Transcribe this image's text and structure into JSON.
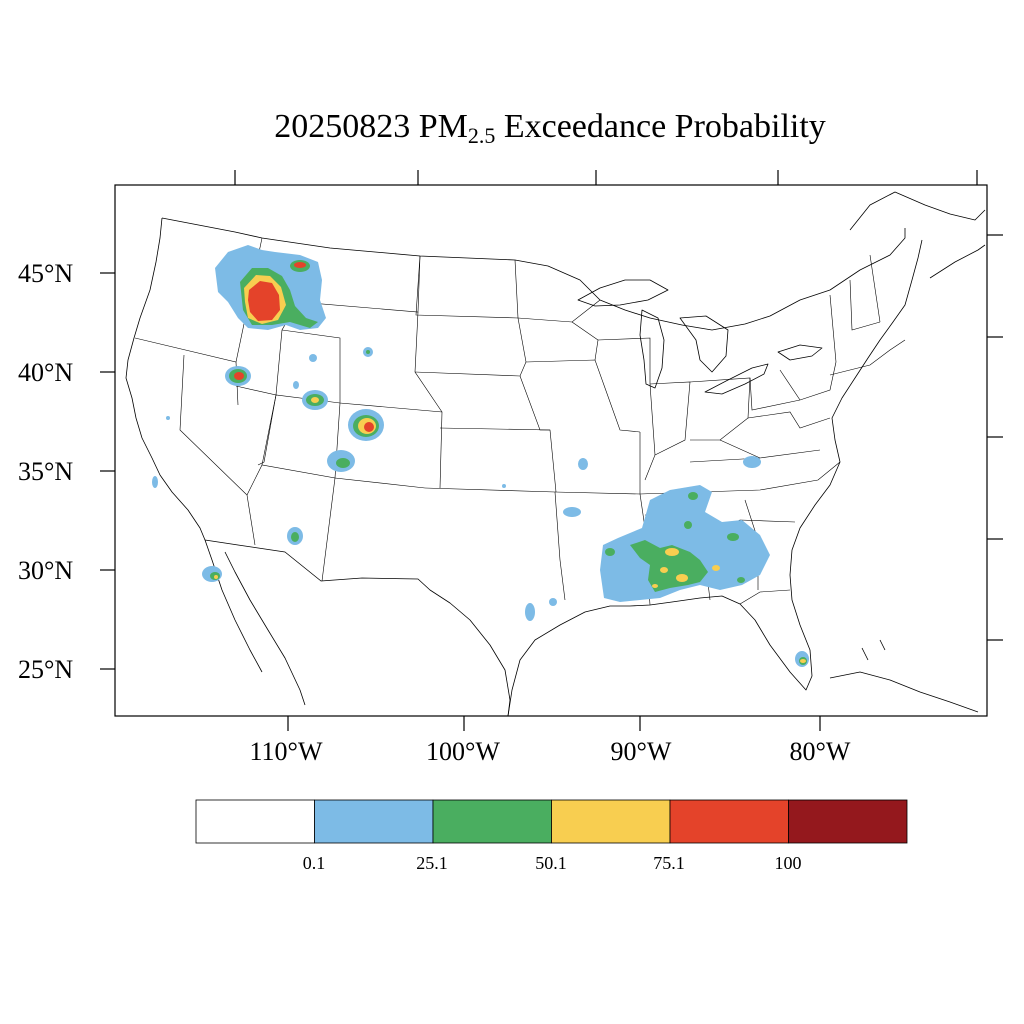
{
  "title": {
    "date": "20250823",
    "pm": "PM",
    "sub": "2.5",
    "rest": "Exceedance Probability"
  },
  "axes": {
    "lat_labels": [
      "45°N",
      "40°N",
      "35°N",
      "30°N",
      "25°N"
    ],
    "lon_labels": [
      "110°W",
      "100°W",
      "90°W",
      "80°W"
    ]
  },
  "colorbar": {
    "colors": [
      "#ffffff",
      "#7dbbe6",
      "#4aae60",
      "#f8ce50",
      "#e4432a",
      "#94181d"
    ],
    "tick_labels": [
      "0.1",
      "25.1",
      "50.1",
      "75.1",
      "100"
    ]
  },
  "plume_colors": {
    "low": "#7dbbe6",
    "mid": "#4aae60",
    "high": "#f8ce50",
    "very_high": "#e4432a"
  }
}
